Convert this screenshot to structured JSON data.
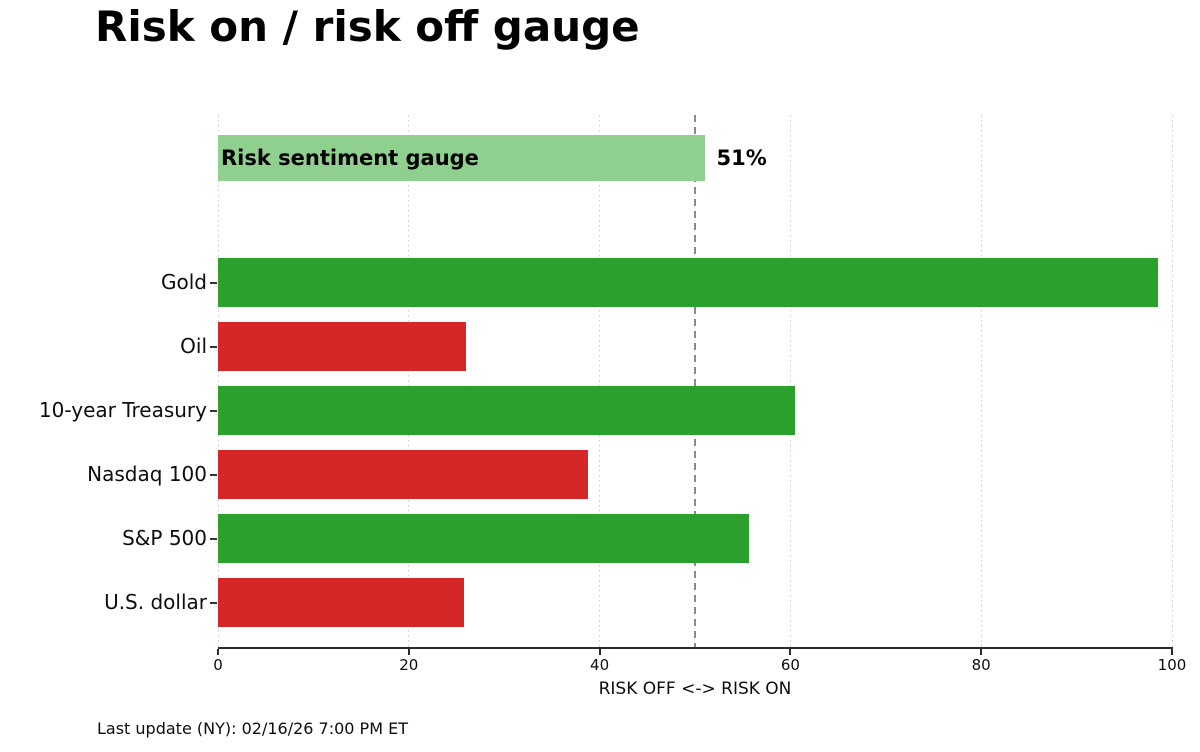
{
  "title": "Risk on / risk off gauge",
  "footer": "Last update (NY): 02/16/26 7:00 PM ET",
  "chart_data": {
    "type": "bar",
    "orientation": "horizontal",
    "title": "Risk on / risk off gauge",
    "xlabel": "RISK OFF <-> RISK ON",
    "xlim": [
      0,
      100
    ],
    "xticks": [
      0,
      20,
      40,
      60,
      80,
      100
    ],
    "grid": "vertical dotted gridlines at each xtick",
    "legend": "none",
    "reference_line_x": 50,
    "gauge": {
      "label": "Risk sentiment gauge",
      "value": 51,
      "annotation": "51%",
      "color_key": "gauge_light_green"
    },
    "categories": [
      "Gold",
      "Oil",
      "10-year Treasury",
      "Nasdaq 100",
      "S&P 500",
      "U.S. dollar"
    ],
    "values": [
      98.5,
      26.0,
      60.5,
      38.8,
      55.7,
      25.8
    ],
    "bar_color_keys": [
      "risk_on_green",
      "risk_off_red",
      "risk_on_green",
      "risk_off_red",
      "risk_on_green",
      "risk_off_red"
    ],
    "palette": {
      "risk_on_green": "#2ca02c",
      "risk_off_red": "#d62728",
      "gauge_light_green": "#8fd08f",
      "reference_line_gray": "#8a8a8a",
      "gridline_gray": "#c9c9c9",
      "axis_dark": "#2b2b2b"
    }
  }
}
